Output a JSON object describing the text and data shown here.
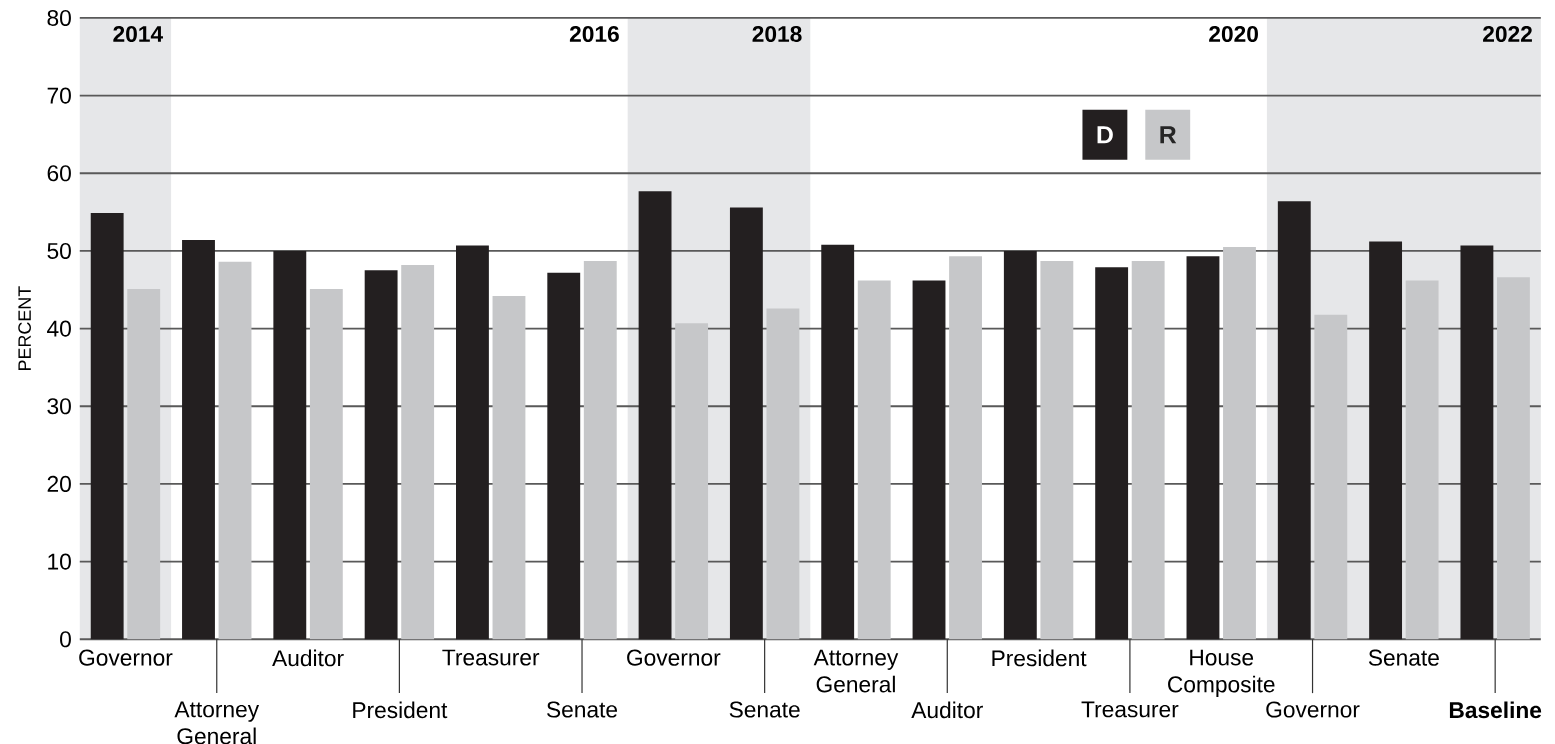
{
  "chart_data": {
    "type": "bar",
    "ylabel": "PERCENT",
    "categories": [
      "Governor",
      "Attorney General",
      "Auditor",
      "President",
      "Treasurer",
      "Senate",
      "Governor",
      "Senate",
      "Attorney General",
      "Auditor",
      "President",
      "Treasurer",
      "House Composite",
      "Governor",
      "Senate",
      "**Baseline**"
    ],
    "series": [
      {
        "name": "D",
        "color": "#231f20",
        "values": [
          54.9,
          51.4,
          50.0,
          47.5,
          50.7,
          47.2,
          57.7,
          55.6,
          50.8,
          46.2,
          50.0,
          47.9,
          49.3,
          56.4,
          51.2,
          50.7
        ]
      },
      {
        "name": "R",
        "color": "#c6c7c9",
        "values": [
          45.1,
          48.6,
          45.1,
          48.2,
          44.2,
          48.7,
          40.7,
          42.6,
          46.2,
          49.3,
          48.7,
          48.7,
          50.5,
          41.8,
          46.2,
          46.6
        ]
      }
    ],
    "ylim": [
      0,
      80
    ],
    "yticks": [
      0,
      10,
      20,
      30,
      40,
      50,
      60,
      70,
      80
    ],
    "grid": "y",
    "legend": "top right",
    "annotations": [
      "2014",
      "2016",
      "2018",
      "2020",
      "2022"
    ]
  }
}
